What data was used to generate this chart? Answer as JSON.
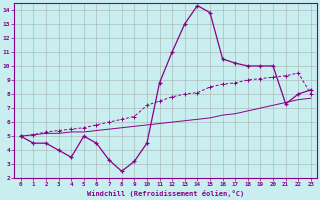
{
  "line1_x": [
    0,
    1,
    2,
    3,
    4,
    5,
    6,
    7,
    8,
    9,
    10,
    11,
    12,
    13,
    14,
    15,
    16,
    17,
    18,
    19,
    20,
    21,
    22,
    23
  ],
  "line1_y": [
    5,
    4.5,
    4.5,
    4.0,
    3.5,
    5.0,
    4.5,
    3.3,
    2.5,
    3.2,
    4.5,
    8.8,
    11.0,
    13.0,
    14.3,
    13.8,
    10.5,
    10.2,
    10.0,
    10.0,
    10.0,
    7.3,
    8.0,
    8.3
  ],
  "line2_x": [
    0,
    1,
    2,
    3,
    4,
    5,
    6,
    7,
    8,
    9,
    10,
    11,
    12,
    13,
    14,
    15,
    16,
    17,
    18,
    19,
    20,
    21,
    22,
    23
  ],
  "line2_y": [
    5.0,
    5.1,
    5.3,
    5.4,
    5.5,
    5.6,
    5.8,
    6.0,
    6.2,
    6.4,
    7.2,
    7.5,
    7.8,
    8.0,
    8.1,
    8.5,
    8.7,
    8.8,
    9.0,
    9.1,
    9.2,
    9.3,
    9.5,
    8.0
  ],
  "line3_x": [
    0,
    1,
    2,
    3,
    4,
    5,
    6,
    7,
    8,
    9,
    10,
    11,
    12,
    13,
    14,
    15,
    16,
    17,
    18,
    19,
    20,
    21,
    22,
    23
  ],
  "line3_y": [
    5.0,
    5.1,
    5.2,
    5.2,
    5.3,
    5.3,
    5.4,
    5.5,
    5.6,
    5.7,
    5.8,
    5.9,
    6.0,
    6.1,
    6.2,
    6.3,
    6.5,
    6.6,
    6.8,
    7.0,
    7.2,
    7.4,
    7.6,
    7.7
  ],
  "color": "#880088",
  "background": "#c8eef0",
  "grid_color": "#999999",
  "xlabel": "Windchill (Refroidissement éolien,°C)",
  "xlim": [
    -0.5,
    23.5
  ],
  "ylim": [
    2,
    14.5
  ],
  "xticks": [
    0,
    1,
    2,
    3,
    4,
    5,
    6,
    7,
    8,
    9,
    10,
    11,
    12,
    13,
    14,
    15,
    16,
    17,
    18,
    19,
    20,
    21,
    22,
    23
  ],
  "yticks": [
    2,
    3,
    4,
    5,
    6,
    7,
    8,
    9,
    10,
    11,
    12,
    13,
    14
  ]
}
